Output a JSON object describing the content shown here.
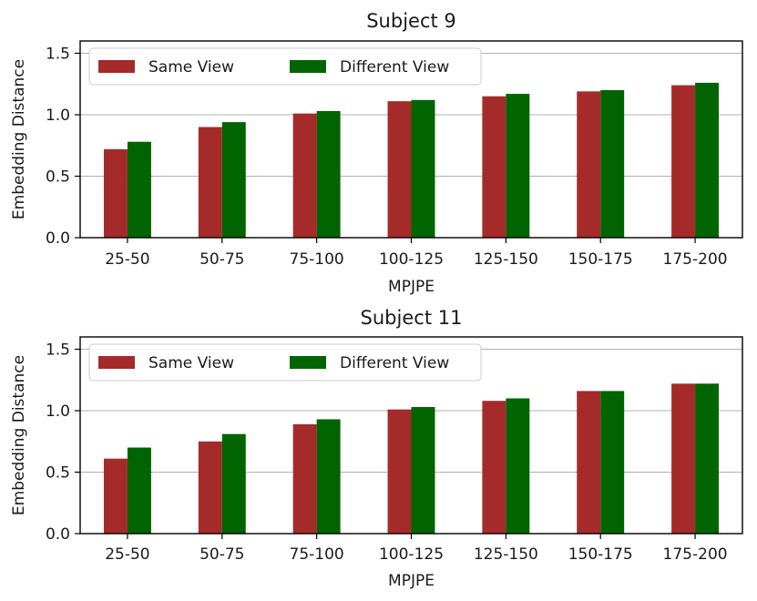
{
  "colors": {
    "same_view": "#a52a2a",
    "different_view": "#006400",
    "grid": "#b0b0b0"
  },
  "chart_data": [
    {
      "type": "bar",
      "title": "Subject 9",
      "xlabel": "MPJPE",
      "ylabel": "Embedding Distance",
      "categories": [
        "25-50",
        "50-75",
        "75-100",
        "100-125",
        "125-150",
        "150-175",
        "175-200"
      ],
      "ylim": [
        0,
        1.6
      ],
      "yticks": [
        "0.0",
        "0.5",
        "1.0",
        "1.5"
      ],
      "ytick_values": [
        0,
        0.5,
        1.0,
        1.5
      ],
      "grid": true,
      "legend_position": "top-left",
      "series": [
        {
          "name": "Same View",
          "color": "#a52a2a",
          "values": [
            0.72,
            0.9,
            1.01,
            1.11,
            1.15,
            1.19,
            1.24
          ]
        },
        {
          "name": "Different View",
          "color": "#006400",
          "values": [
            0.78,
            0.94,
            1.03,
            1.12,
            1.17,
            1.2,
            1.26
          ]
        }
      ]
    },
    {
      "type": "bar",
      "title": "Subject 11",
      "xlabel": "MPJPE",
      "ylabel": "Embedding Distance",
      "categories": [
        "25-50",
        "50-75",
        "75-100",
        "100-125",
        "125-150",
        "150-175",
        "175-200"
      ],
      "ylim": [
        0,
        1.6
      ],
      "yticks": [
        "0.0",
        "0.5",
        "1.0",
        "1.5"
      ],
      "ytick_values": [
        0,
        0.5,
        1.0,
        1.5
      ],
      "grid": true,
      "legend_position": "top-left",
      "series": [
        {
          "name": "Same View",
          "color": "#a52a2a",
          "values": [
            0.61,
            0.75,
            0.89,
            1.01,
            1.08,
            1.16,
            1.22
          ]
        },
        {
          "name": "Different View",
          "color": "#006400",
          "values": [
            0.7,
            0.81,
            0.93,
            1.03,
            1.1,
            1.16,
            1.22
          ]
        }
      ]
    }
  ]
}
